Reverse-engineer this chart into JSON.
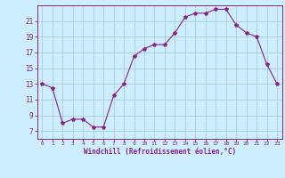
{
  "x": [
    0,
    1,
    2,
    3,
    4,
    5,
    6,
    7,
    8,
    9,
    10,
    11,
    12,
    13,
    14,
    15,
    16,
    17,
    18,
    19,
    20,
    21,
    22,
    23
  ],
  "y": [
    13,
    12.5,
    8,
    8.5,
    8.5,
    7.5,
    7.5,
    11.5,
    13,
    16.5,
    17.5,
    18,
    18,
    19.5,
    21.5,
    22,
    22,
    22.5,
    22.5,
    20.5,
    19.5,
    19,
    15.5,
    13
  ],
  "line_color": "#882288",
  "marker": "*",
  "background_color": "#cceeff",
  "grid_color": "#aaccdd",
  "xlabel": "Windchill (Refroidissement éolien,°C)",
  "yticks": [
    7,
    9,
    11,
    13,
    15,
    17,
    19,
    21
  ],
  "xtick_labels": [
    "0",
    "1",
    "2",
    "3",
    "4",
    "5",
    "6",
    "7",
    "8",
    "9",
    "10",
    "11",
    "12",
    "13",
    "14",
    "15",
    "16",
    "17",
    "18",
    "19",
    "20",
    "21",
    "22",
    "23"
  ],
  "xticks": [
    0,
    1,
    2,
    3,
    4,
    5,
    6,
    7,
    8,
    9,
    10,
    11,
    12,
    13,
    14,
    15,
    16,
    17,
    18,
    19,
    20,
    21,
    22,
    23
  ],
  "ylim": [
    6.0,
    23.0
  ],
  "xlim": [
    -0.5,
    23.5
  ]
}
